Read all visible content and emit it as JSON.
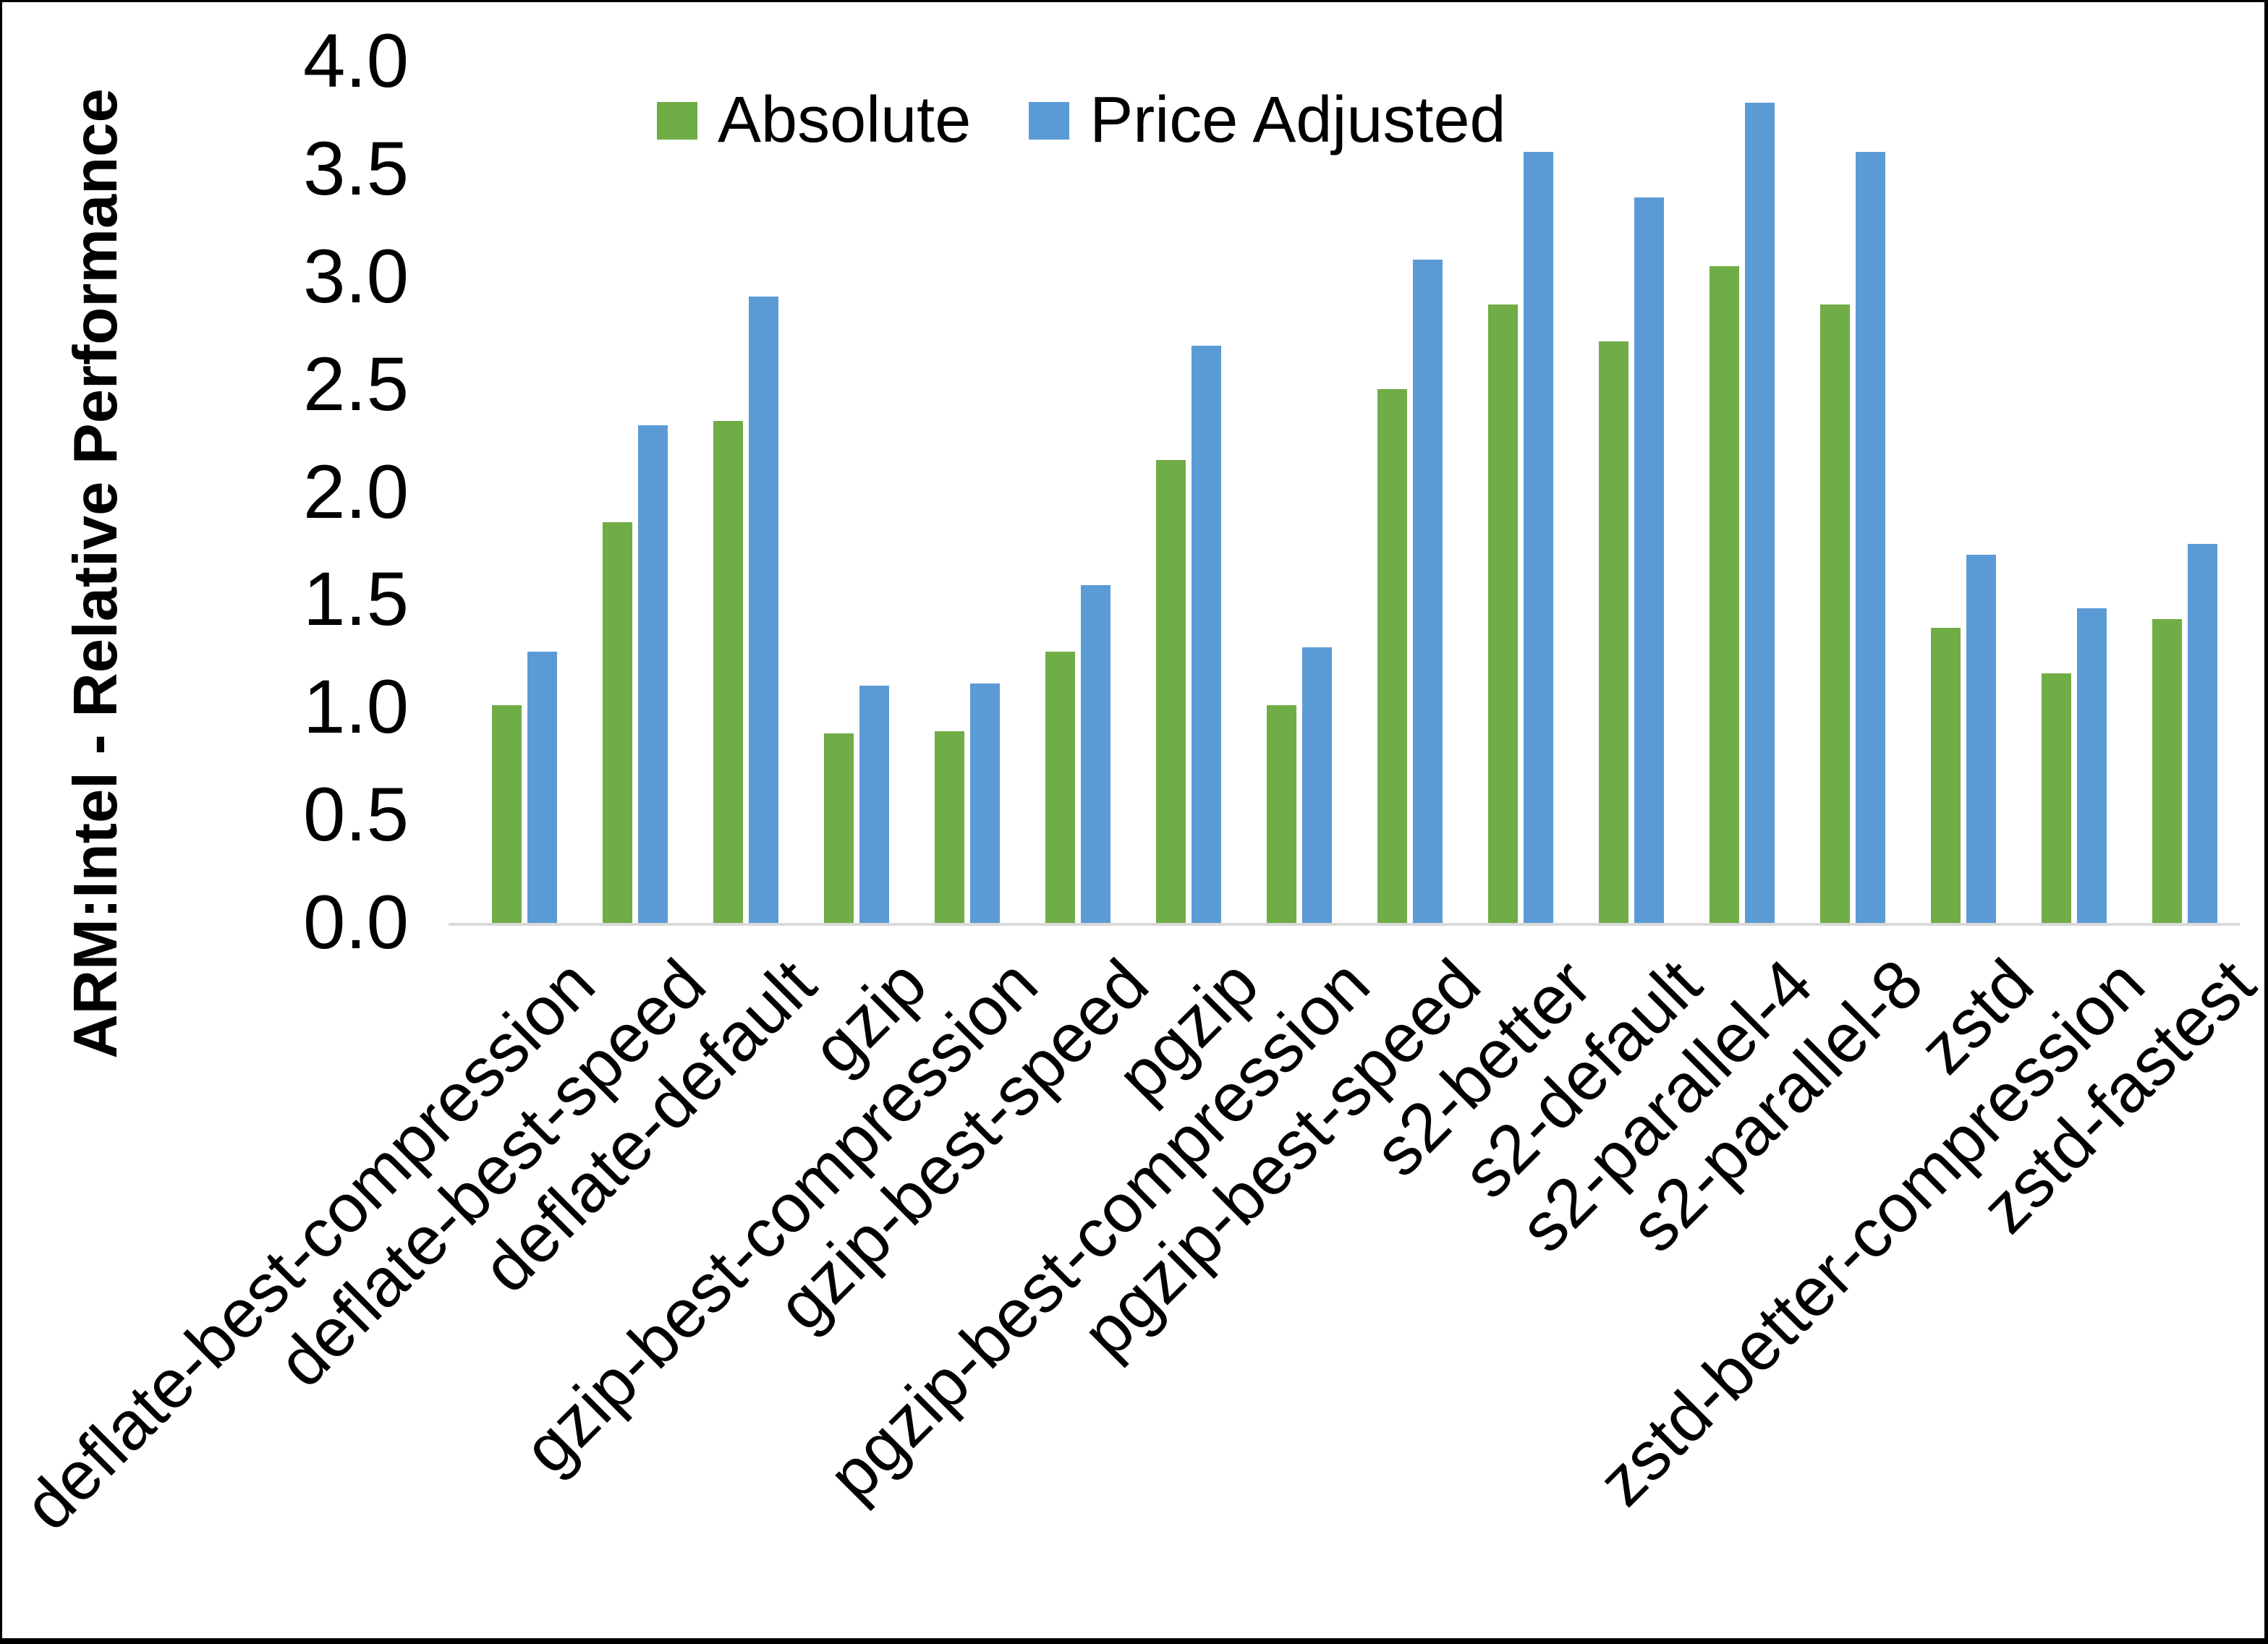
{
  "figure": {
    "background": "#ffffff",
    "border_color": "#000000",
    "axis_line_color": "#d9d9d9",
    "text_color": "#000000"
  },
  "chart_data": {
    "type": "bar",
    "title": "",
    "xlabel": "",
    "ylabel": "ARM:Intel - Relative Performance",
    "ylim": [
      0,
      4
    ],
    "ytick_step": 0.5,
    "yticks": [
      "4.0",
      "3.5",
      "3.0",
      "2.5",
      "2.0",
      "1.5",
      "1.0",
      "0.5",
      "0.0"
    ],
    "grid": false,
    "legend_position": "top-center",
    "categories": [
      "deflate-best-compression",
      "deflate-best-speed",
      "deflate-default",
      "gzip",
      "gzip-best-compression",
      "gzip-best-speed",
      "pgzip",
      "pgzip-best-compression",
      "pgzip-best-speed",
      "s2-better",
      "s2-default",
      "s2-parallel-4",
      "s2-parallel-8",
      "zstd",
      "zstd-better-compression",
      "zstd-fastest"
    ],
    "series": [
      {
        "name": "Absolute",
        "color": "#70AD47",
        "values": [
          1.01,
          1.86,
          2.33,
          0.88,
          0.89,
          1.26,
          2.15,
          1.01,
          2.48,
          2.87,
          2.7,
          3.05,
          2.87,
          1.37,
          1.16,
          1.41
        ]
      },
      {
        "name": "Price Adjusted",
        "color": "#5B9BD5",
        "values": [
          1.26,
          2.31,
          2.91,
          1.1,
          1.11,
          1.57,
          2.68,
          1.28,
          3.08,
          3.58,
          3.37,
          3.81,
          3.58,
          1.71,
          1.46,
          1.76
        ]
      }
    ]
  }
}
